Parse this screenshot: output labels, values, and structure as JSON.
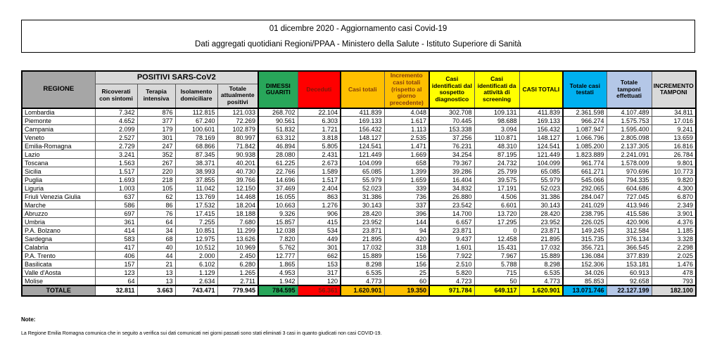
{
  "title": {
    "line1": "01 dicembre 2020 - Aggiornamento casi Covid-19",
    "line2": "Dati aggregati quotidiani Regioni/PPAA - Ministero della Salute - Istituto Superiore di Sanità"
  },
  "colors": {
    "green": "#28A65A",
    "red": "#FF0000",
    "darkred": "#7B1A09",
    "orange": "#FFC000",
    "darkorange": "#843C0C",
    "yellow": "#FFFF00",
    "cyan": "#00B0F0",
    "lblue": "#B4C7E7",
    "lgray": "#D9D9D9",
    "dgray": "#A6A6A6"
  },
  "table": {
    "region_header": "REGIONE",
    "group_header": "POSITIVI SARS-CoV2",
    "columns": [
      "Ricoverati con sintomi",
      "Terapia intensiva",
      "Isolamento domiciliare",
      "Totale attualmente positivi",
      "DIMESSI GUARITI",
      "Deceduti",
      "Casi totali",
      "Incremento casi totali (rispetto al giorno precedente)",
      "Casi identificati dal sospetto diagnostico",
      "Casi identificati da attività di screening",
      "CASI TOTALI",
      "Totale casi testati",
      "Totale tamponi effettuati",
      "INCREMENTO TAMPONI"
    ],
    "rows": [
      {
        "region": "Lombardia",
        "values": [
          "7.342",
          "876",
          "112.815",
          "121.033",
          "268.702",
          "22.104",
          "411.839",
          "4.048",
          "302.708",
          "109.131",
          "411.839",
          "2.361.598",
          "4.107.489",
          "34.811"
        ]
      },
      {
        "region": "Piemonte",
        "values": [
          "4.652",
          "377",
          "67.240",
          "72.269",
          "90.561",
          "6.303",
          "169.133",
          "1.617",
          "70.445",
          "98.688",
          "169.133",
          "966.274",
          "1.575.753",
          "17.016"
        ]
      },
      {
        "region": "Campania",
        "values": [
          "2.099",
          "179",
          "100.601",
          "102.879",
          "51.832",
          "1.721",
          "156.432",
          "1.113",
          "153.338",
          "3.094",
          "156.432",
          "1.087.947",
          "1.595.400",
          "9.241"
        ]
      },
      {
        "region": "Veneto",
        "values": [
          "2.527",
          "301",
          "78.169",
          "80.997",
          "63.312",
          "3.818",
          "148.127",
          "2.535",
          "37.256",
          "110.871",
          "148.127",
          "1.066.796",
          "2.805.098",
          "13.659"
        ]
      },
      {
        "region": "Emilia-Romagna",
        "values": [
          "2.729",
          "247",
          "68.866",
          "71.842",
          "46.894",
          "5.805",
          "124.541",
          "1.471",
          "76.231",
          "48.310",
          "124.541",
          "1.085.200",
          "2.137.305",
          "16.816"
        ]
      },
      {
        "region": "Lazio",
        "values": [
          "3.241",
          "352",
          "87.345",
          "90.938",
          "28.080",
          "2.431",
          "121.449",
          "1.669",
          "34.254",
          "87.195",
          "121.449",
          "1.823.889",
          "2.241.091",
          "26.784"
        ]
      },
      {
        "region": "Toscana",
        "values": [
          "1.563",
          "267",
          "38.371",
          "40.201",
          "61.225",
          "2.673",
          "104.099",
          "658",
          "79.367",
          "24.732",
          "104.099",
          "961.774",
          "1.578.009",
          "9.801"
        ]
      },
      {
        "region": "Sicilia",
        "values": [
          "1.517",
          "220",
          "38.993",
          "40.730",
          "22.766",
          "1.589",
          "65.085",
          "1.399",
          "39.286",
          "25.799",
          "65.085",
          "661.271",
          "970.696",
          "10.773"
        ]
      },
      {
        "region": "Puglia",
        "values": [
          "1.693",
          "218",
          "37.855",
          "39.766",
          "14.696",
          "1.517",
          "55.979",
          "1.659",
          "16.404",
          "39.575",
          "55.979",
          "545.066",
          "794.335",
          "9.820"
        ]
      },
      {
        "region": "Liguria",
        "values": [
          "1.003",
          "105",
          "11.042",
          "12.150",
          "37.469",
          "2.404",
          "52.023",
          "339",
          "34.832",
          "17.191",
          "52.023",
          "292.065",
          "604.686",
          "4.300"
        ]
      },
      {
        "region": "Friuli Venezia Giulia",
        "values": [
          "637",
          "62",
          "13.769",
          "14.468",
          "16.055",
          "863",
          "31.386",
          "736",
          "26.880",
          "4.506",
          "31.386",
          "284.047",
          "727.045",
          "6.870"
        ]
      },
      {
        "region": "Marche",
        "values": [
          "586",
          "86",
          "17.532",
          "18.204",
          "10.663",
          "1.276",
          "30.143",
          "337",
          "23.542",
          "6.601",
          "30.143",
          "241.029",
          "413.946",
          "2.349"
        ]
      },
      {
        "region": "Abruzzo",
        "values": [
          "697",
          "76",
          "17.415",
          "18.188",
          "9.326",
          "906",
          "28.420",
          "396",
          "14.700",
          "13.720",
          "28.420",
          "238.795",
          "415.586",
          "3.901"
        ]
      },
      {
        "region": "Umbria",
        "values": [
          "361",
          "64",
          "7.255",
          "7.680",
          "15.857",
          "415",
          "23.952",
          "144",
          "6.657",
          "17.295",
          "23.952",
          "226.025",
          "420.906",
          "4.376"
        ]
      },
      {
        "region": "P.A. Bolzano",
        "values": [
          "414",
          "34",
          "10.851",
          "11.299",
          "12.038",
          "534",
          "23.871",
          "94",
          "23.871",
          "0",
          "23.871",
          "149.245",
          "312.584",
          "1.185"
        ]
      },
      {
        "region": "Sardegna",
        "values": [
          "583",
          "68",
          "12.975",
          "13.626",
          "7.820",
          "449",
          "21.895",
          "420",
          "9.437",
          "12.458",
          "21.895",
          "315.735",
          "376.134",
          "3.328"
        ]
      },
      {
        "region": "Calabria",
        "values": [
          "417",
          "40",
          "10.512",
          "10.969",
          "5.762",
          "301",
          "17.032",
          "318",
          "1.601",
          "15.431",
          "17.032",
          "356.721",
          "366.545",
          "2.298"
        ]
      },
      {
        "region": "P.A. Trento",
        "values": [
          "406",
          "44",
          "2.000",
          "2.450",
          "12.777",
          "662",
          "15.889",
          "156",
          "7.922",
          "7.967",
          "15.889",
          "136.084",
          "377.839",
          "2.025"
        ]
      },
      {
        "region": "Basilicata",
        "values": [
          "157",
          "21",
          "6.102",
          "6.280",
          "1.865",
          "153",
          "8.298",
          "156",
          "2.510",
          "5.788",
          "8.298",
          "152.306",
          "153.181",
          "1.476"
        ]
      },
      {
        "region": "Valle d'Aosta",
        "values": [
          "123",
          "13",
          "1.129",
          "1.265",
          "4.953",
          "317",
          "6.535",
          "25",
          "5.820",
          "715",
          "6.535",
          "34.026",
          "60.913",
          "478"
        ]
      },
      {
        "region": "Molise",
        "values": [
          "64",
          "13",
          "2.634",
          "2.711",
          "1.942",
          "120",
          "4.773",
          "60",
          "4.723",
          "50",
          "4.773",
          "85.853",
          "92.658",
          "793"
        ]
      }
    ],
    "total": {
      "label": "TOTALE",
      "values": [
        "32.811",
        "3.663",
        "743.471",
        "779.945",
        "784.595",
        "56.361",
        "1.620.901",
        "19.350",
        "971.784",
        "649.117",
        "1.620.901",
        "13.071.746",
        "22.127.199",
        "182.100"
      ]
    }
  },
  "note": {
    "heading": "Note:",
    "text": "La Regione Emilia Romagna comunica che in seguito a verifica sui dati comunicati nei giorni passati sono stati eliminati 3 casi in quanto giudicati non casi COVID-19."
  }
}
